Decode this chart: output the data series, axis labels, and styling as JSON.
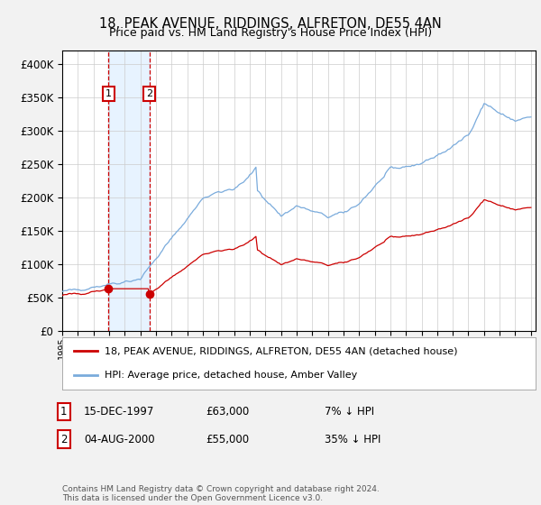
{
  "title": "18, PEAK AVENUE, RIDDINGS, ALFRETON, DE55 4AN",
  "subtitle": "Price paid vs. HM Land Registry's House Price Index (HPI)",
  "title_fontsize": 10.5,
  "subtitle_fontsize": 9,
  "ylim": [
    0,
    420000
  ],
  "yticks": [
    0,
    50000,
    100000,
    150000,
    200000,
    250000,
    300000,
    350000,
    400000
  ],
  "background_color": "#f2f2f2",
  "plot_background": "#ffffff",
  "grid_color": "#cccccc",
  "sale1_price": 63000,
  "sale1_label": "1",
  "sale1_year": 1997.96,
  "sale2_price": 55000,
  "sale2_label": "2",
  "sale2_year": 2000.58,
  "annotation_box_color": "#cc0000",
  "annotation_shade_color": "#ddeeff",
  "red_line_color": "#cc0000",
  "blue_line_color": "#7aabdc",
  "legend_label_red": "18, PEAK AVENUE, RIDDINGS, ALFRETON, DE55 4AN (detached house)",
  "legend_label_blue": "HPI: Average price, detached house, Amber Valley",
  "footnote": "Contains HM Land Registry data © Crown copyright and database right 2024.\nThis data is licensed under the Open Government Licence v3.0.",
  "table_rows": [
    {
      "num": "1",
      "date": "15-DEC-1997",
      "price": "£63,000",
      "hpi": "7% ↓ HPI"
    },
    {
      "num": "2",
      "date": "04-AUG-2000",
      "price": "£55,000",
      "hpi": "35% ↓ HPI"
    }
  ]
}
